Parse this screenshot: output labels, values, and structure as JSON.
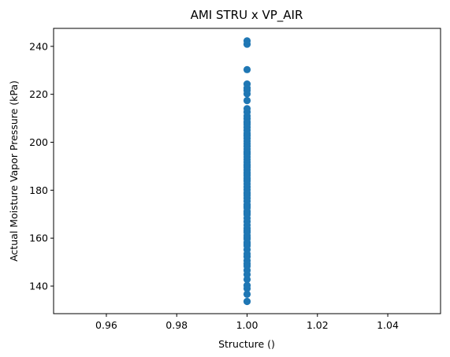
{
  "chart_data": {
    "type": "scatter",
    "title": "AMI STRU x VP_AIR",
    "xlabel": "Structure ()",
    "ylabel": "Actual Moisture Vapor Pressure (kPa)",
    "xlim": [
      0.945,
      1.055
    ],
    "ylim": [
      128.5,
      247.5
    ],
    "xticks": [
      0.96,
      0.98,
      1.0,
      1.02,
      1.04
    ],
    "xtick_labels": [
      "0.96",
      "0.98",
      "1.00",
      "1.02",
      "1.04"
    ],
    "yticks": [
      140,
      160,
      180,
      200,
      220,
      240
    ],
    "ytick_labels": [
      "140",
      "160",
      "180",
      "200",
      "220",
      "240"
    ],
    "grid": false,
    "marker_color": "#1f77b4",
    "series": [
      {
        "x": [
          1,
          1,
          1,
          1,
          1,
          1,
          1,
          1,
          1,
          1,
          1,
          1,
          1,
          1,
          1,
          1,
          1,
          1,
          1,
          1,
          1,
          1,
          1,
          1,
          1,
          1,
          1,
          1,
          1,
          1,
          1,
          1,
          1,
          1,
          1,
          1,
          1,
          1,
          1,
          1,
          1,
          1,
          1,
          1,
          1,
          1,
          1,
          1,
          1,
          1,
          1,
          1,
          1,
          1,
          1,
          1,
          1,
          1,
          1,
          1,
          1,
          1,
          1,
          1,
          1,
          1,
          1,
          1,
          1,
          1,
          1,
          1,
          1,
          1,
          1,
          1,
          1,
          1,
          1,
          1
        ],
        "y": [
          133.6,
          136.6,
          140.3,
          142.8,
          144.8,
          146.6,
          148.4,
          150.6,
          152.3,
          153.5,
          155.2,
          156.8,
          158.3,
          159.7,
          161.2,
          162.5,
          164.1,
          165.5,
          166.9,
          168.3,
          169.8,
          171.2,
          172.6,
          174.0,
          175.4,
          176.6,
          177.8,
          179.0,
          180.2,
          181.4,
          182.6,
          183.8,
          185.0,
          186.1,
          187.3,
          188.4,
          189.5,
          190.6,
          191.7,
          192.8,
          193.9,
          195.0,
          196.1,
          197.2,
          198.3,
          199.4,
          200.5,
          201.6,
          202.7,
          203.8,
          205.0,
          206.2,
          207.4,
          208.6,
          209.8,
          211.0,
          212.6,
          214.0,
          217.4,
          220.2,
          221.6,
          222.6,
          224.3,
          230.3,
          240.9,
          242.3,
          178.5,
          184.4,
          190.0,
          195.6,
          160.4,
          170.5,
          157.5,
          149.3,
          139.0,
          203.1,
          208.1,
          186.7,
          173.3,
          163.2
        ]
      }
    ]
  }
}
